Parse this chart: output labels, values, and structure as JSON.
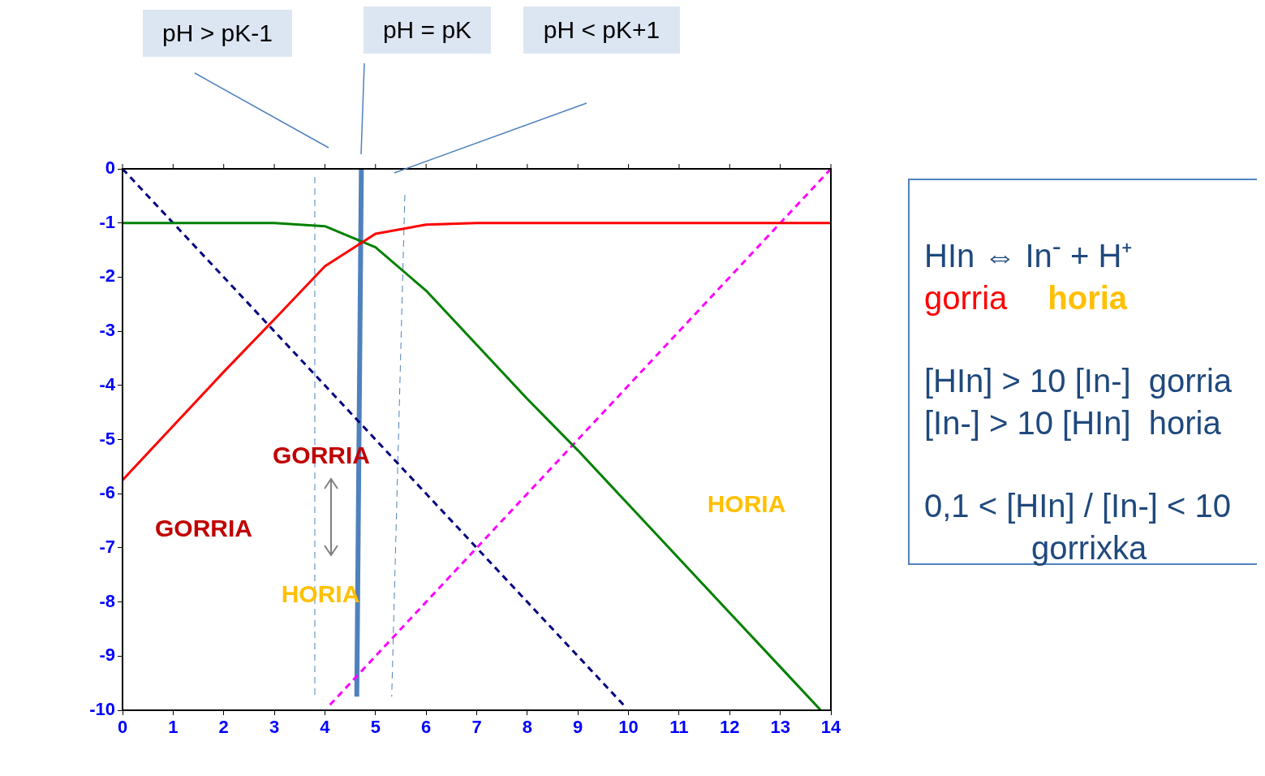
{
  "chart_data": {
    "type": "line",
    "xlim": [
      0,
      14
    ],
    "ylim": [
      -10,
      0
    ],
    "xticks": [
      0,
      1,
      2,
      3,
      4,
      5,
      6,
      7,
      8,
      9,
      10,
      11,
      12,
      13,
      14
    ],
    "yticks": [
      0,
      -1,
      -2,
      -3,
      -4,
      -5,
      -6,
      -7,
      -8,
      -9,
      -10
    ],
    "grid": false,
    "legend": false,
    "marker": "none",
    "series": [
      {
        "color": "#ff0000",
        "x": [
          0,
          1,
          2,
          3,
          4,
          5,
          6,
          7,
          8,
          9,
          10,
          11,
          12,
          13,
          14
        ],
        "values": [
          -5.75,
          -4.75,
          -3.75,
          -2.78,
          -1.8,
          -1.2,
          -1.03,
          -1,
          -1,
          -1,
          -1,
          -1,
          -1,
          -1,
          -1
        ]
      },
      {
        "color": "#008000",
        "x": [
          0,
          1,
          2,
          3,
          4,
          5,
          6,
          7,
          8,
          9,
          10,
          11,
          12,
          13,
          13.8
        ],
        "values": [
          -1,
          -1,
          -1,
          -1,
          -1.06,
          -1.45,
          -2.25,
          -3.25,
          -4.25,
          -5.2,
          -6.2,
          -7.2,
          -8.2,
          -9.2,
          -10
        ]
      },
      {
        "color": "#000080",
        "line_style": "dashed",
        "x": [
          0,
          9.9
        ],
        "values": [
          0,
          -9.9
        ]
      },
      {
        "color": "#ff00ff",
        "line_style": "dashed",
        "x": [
          4.1,
          14
        ],
        "values": [
          -9.9,
          0
        ]
      },
      {
        "color": "#4f81bd",
        "x": [
          4.72,
          4.63
        ],
        "values": [
          0,
          -9.75
        ]
      },
      {
        "color": "#4f81bd",
        "line_style": "dashed",
        "x": [
          3.8,
          3.8
        ],
        "values": [
          -0.15,
          -9.75
        ]
      },
      {
        "color": "#4f81bd",
        "line_style": "dashed",
        "x": [
          5.58,
          5.32
        ],
        "values": [
          -0.48,
          -9.75
        ]
      }
    ],
    "annotations": [
      "pH > pK-1",
      "pH = pK",
      "pH < pK+1",
      "HIn ⇔ In$^{-}$ + H⁺",
      "gorria",
      "horia",
      "[HIn] > 10 [In-]  gorria",
      "[In-] > 10 [HIn]  horia",
      "0,1 < [HIn] / [In-] < 10",
      "gorrixka",
      "GORRIA",
      "GORRIA",
      "HORIA",
      "HORIA"
    ]
  }
}
